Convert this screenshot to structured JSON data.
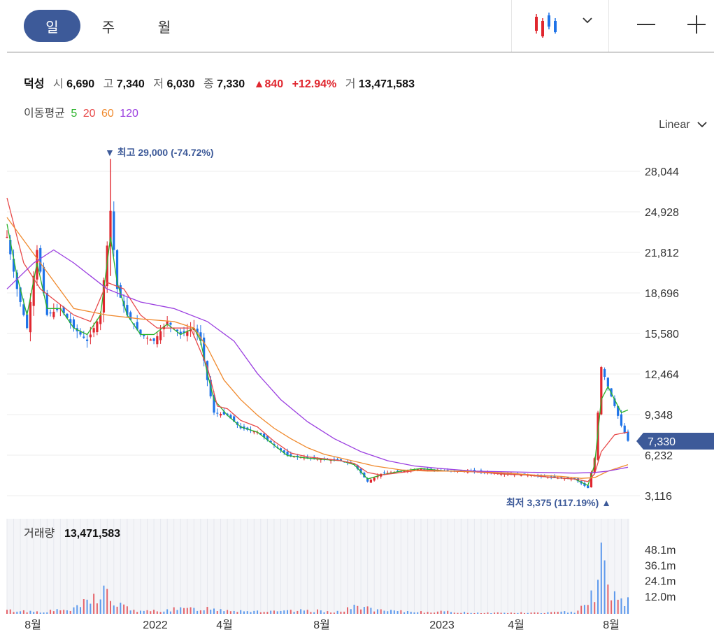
{
  "toolbar": {
    "periods": [
      "일",
      "주",
      "월"
    ],
    "active_period": "일"
  },
  "stock": {
    "name": "덕성",
    "open_label": "시",
    "open": "6,690",
    "high_label": "고",
    "high": "7,340",
    "low_label": "저",
    "low": "6,030",
    "close_label": "종",
    "close": "7,330",
    "change": "▲840",
    "change_pct": "+12.94%",
    "volume_label": "거",
    "volume": "13,471,583"
  },
  "ma": {
    "label": "이동평균",
    "periods": [
      "5",
      "20",
      "60",
      "120"
    ]
  },
  "scale_label": "Linear",
  "colors": {
    "up": "#e0272f",
    "down": "#1e73e8",
    "ma5": "#2bb32b",
    "ma20": "#e84a4a",
    "ma60": "#f08a2e",
    "ma120": "#9b3fe0",
    "accent": "#3d5a99"
  },
  "annotations": {
    "high": "▼ 최고 29,000 (-74.72%)",
    "low": "최저 3,375 (117.19%) ▲"
  },
  "current_price_tag": "7,330",
  "volume_panel": {
    "label": "거래량",
    "value": "13,471,583"
  },
  "chart_data": {
    "type": "candlestick",
    "y_ticks": [
      "28,044",
      "24,928",
      "21,812",
      "18,696",
      "15,580",
      "12,464",
      "9,348",
      "6,232",
      "3,116"
    ],
    "ylim": [
      3116,
      28044
    ],
    "x_ticks": [
      "8월",
      "2022",
      "4월",
      "8월",
      "2023",
      "4월",
      "8월"
    ],
    "volume_ticks": [
      "48.1m",
      "36.1m",
      "24.1m",
      "12.0m"
    ],
    "close_trend": [
      [
        0,
        23000
      ],
      [
        3,
        19000
      ],
      [
        6,
        16000
      ],
      [
        9,
        22000
      ],
      [
        12,
        17000
      ],
      [
        16,
        17500
      ],
      [
        20,
        16000
      ],
      [
        24,
        15000
      ],
      [
        28,
        17000
      ],
      [
        31,
        25000
      ],
      [
        33,
        19000
      ],
      [
        36,
        17000
      ],
      [
        40,
        15500
      ],
      [
        44,
        15000
      ],
      [
        48,
        16500
      ],
      [
        52,
        15500
      ],
      [
        56,
        16000
      ],
      [
        58,
        15000
      ],
      [
        60,
        12000
      ],
      [
        62,
        9500
      ],
      [
        66,
        9300
      ],
      [
        70,
        8300
      ],
      [
        75,
        8000
      ],
      [
        80,
        7000
      ],
      [
        84,
        6200
      ],
      [
        90,
        6000
      ],
      [
        95,
        5900
      ],
      [
        100,
        5800
      ],
      [
        104,
        5500
      ],
      [
        108,
        4200
      ],
      [
        112,
        4800
      ],
      [
        118,
        5000
      ],
      [
        124,
        5200
      ],
      [
        132,
        5000
      ],
      [
        140,
        5000
      ],
      [
        148,
        4800
      ],
      [
        156,
        4700
      ],
      [
        164,
        4500
      ],
      [
        170,
        4400
      ],
      [
        174,
        3700
      ],
      [
        176,
        6000
      ],
      [
        178,
        13000
      ],
      [
        180,
        11500
      ],
      [
        182,
        10000
      ],
      [
        184,
        8500
      ],
      [
        186,
        7330
      ]
    ],
    "ma5": [
      [
        0,
        24000
      ],
      [
        3,
        20000
      ],
      [
        6,
        17000
      ],
      [
        9,
        21000
      ],
      [
        12,
        17500
      ],
      [
        16,
        17500
      ],
      [
        20,
        16000
      ],
      [
        24,
        15500
      ],
      [
        28,
        17000
      ],
      [
        31,
        23000
      ],
      [
        33,
        19500
      ],
      [
        36,
        17000
      ],
      [
        40,
        15500
      ],
      [
        44,
        15500
      ],
      [
        48,
        16300
      ],
      [
        52,
        15500
      ],
      [
        56,
        16000
      ],
      [
        58,
        15000
      ],
      [
        60,
        12500
      ],
      [
        62,
        10500
      ],
      [
        66,
        9300
      ],
      [
        70,
        8400
      ],
      [
        75,
        8000
      ],
      [
        80,
        7000
      ],
      [
        84,
        6200
      ],
      [
        90,
        6000
      ],
      [
        95,
        5900
      ],
      [
        100,
        5800
      ],
      [
        104,
        5500
      ],
      [
        108,
        4400
      ],
      [
        112,
        4700
      ],
      [
        118,
        5000
      ],
      [
        124,
        5200
      ],
      [
        132,
        5000
      ],
      [
        140,
        5000
      ],
      [
        148,
        4800
      ],
      [
        156,
        4700
      ],
      [
        164,
        4500
      ],
      [
        170,
        4400
      ],
      [
        174,
        3900
      ],
      [
        176,
        5500
      ],
      [
        178,
        10500
      ],
      [
        180,
        11500
      ],
      [
        182,
        10500
      ],
      [
        184,
        9500
      ],
      [
        186,
        9700
      ]
    ],
    "ma20": [
      [
        0,
        26000
      ],
      [
        5,
        21000
      ],
      [
        10,
        19000
      ],
      [
        15,
        18000
      ],
      [
        20,
        17000
      ],
      [
        25,
        16500
      ],
      [
        30,
        19500
      ],
      [
        35,
        19000
      ],
      [
        40,
        17000
      ],
      [
        45,
        16000
      ],
      [
        50,
        16000
      ],
      [
        55,
        16000
      ],
      [
        60,
        13000
      ],
      [
        63,
        10000
      ],
      [
        66,
        9800
      ],
      [
        70,
        8900
      ],
      [
        75,
        8400
      ],
      [
        80,
        7300
      ],
      [
        85,
        6400
      ],
      [
        90,
        6100
      ],
      [
        95,
        5950
      ],
      [
        100,
        5800
      ],
      [
        104,
        5600
      ],
      [
        108,
        4900
      ],
      [
        112,
        4700
      ],
      [
        118,
        4900
      ],
      [
        124,
        5100
      ],
      [
        132,
        5000
      ],
      [
        140,
        4950
      ],
      [
        148,
        4800
      ],
      [
        156,
        4700
      ],
      [
        164,
        4500
      ],
      [
        170,
        4400
      ],
      [
        174,
        4200
      ],
      [
        176,
        4800
      ],
      [
        178,
        6500
      ],
      [
        182,
        7800
      ],
      [
        186,
        8000
      ]
    ],
    "ma60": [
      [
        0,
        24500
      ],
      [
        10,
        21000
      ],
      [
        20,
        17500
      ],
      [
        30,
        17000
      ],
      [
        40,
        16700
      ],
      [
        50,
        16500
      ],
      [
        56,
        16000
      ],
      [
        60,
        14500
      ],
      [
        65,
        12000
      ],
      [
        70,
        10500
      ],
      [
        75,
        9300
      ],
      [
        80,
        8300
      ],
      [
        85,
        7500
      ],
      [
        90,
        6800
      ],
      [
        95,
        6300
      ],
      [
        100,
        6000
      ],
      [
        105,
        5700
      ],
      [
        110,
        5400
      ],
      [
        118,
        5100
      ],
      [
        126,
        5000
      ],
      [
        134,
        5000
      ],
      [
        142,
        4950
      ],
      [
        150,
        4850
      ],
      [
        158,
        4700
      ],
      [
        166,
        4600
      ],
      [
        172,
        4450
      ],
      [
        176,
        4500
      ],
      [
        180,
        5000
      ],
      [
        186,
        5500
      ]
    ],
    "ma120": [
      [
        0,
        19000
      ],
      [
        8,
        21000
      ],
      [
        14,
        22000
      ],
      [
        20,
        21000
      ],
      [
        30,
        19000
      ],
      [
        40,
        18000
      ],
      [
        50,
        17500
      ],
      [
        60,
        16500
      ],
      [
        68,
        15000
      ],
      [
        75,
        12500
      ],
      [
        82,
        10500
      ],
      [
        90,
        8800
      ],
      [
        98,
        7500
      ],
      [
        106,
        6500
      ],
      [
        114,
        5800
      ],
      [
        122,
        5400
      ],
      [
        130,
        5200
      ],
      [
        140,
        5000
      ],
      [
        150,
        4950
      ],
      [
        160,
        4900
      ],
      [
        170,
        4850
      ],
      [
        176,
        4900
      ],
      [
        180,
        5000
      ],
      [
        186,
        5300
      ]
    ],
    "volume_trend": [
      [
        0,
        3
      ],
      [
        10,
        2
      ],
      [
        20,
        4
      ],
      [
        30,
        22
      ],
      [
        31,
        10
      ],
      [
        40,
        2
      ],
      [
        50,
        4
      ],
      [
        60,
        5
      ],
      [
        70,
        3
      ],
      [
        80,
        2
      ],
      [
        90,
        3
      ],
      [
        100,
        2
      ],
      [
        106,
        8
      ],
      [
        110,
        3
      ],
      [
        120,
        2
      ],
      [
        130,
        2
      ],
      [
        140,
        1
      ],
      [
        150,
        1
      ],
      [
        160,
        1
      ],
      [
        170,
        2
      ],
      [
        176,
        20
      ],
      [
        178,
        48
      ],
      [
        180,
        30
      ],
      [
        182,
        18
      ],
      [
        184,
        12
      ],
      [
        186,
        13
      ]
    ]
  }
}
